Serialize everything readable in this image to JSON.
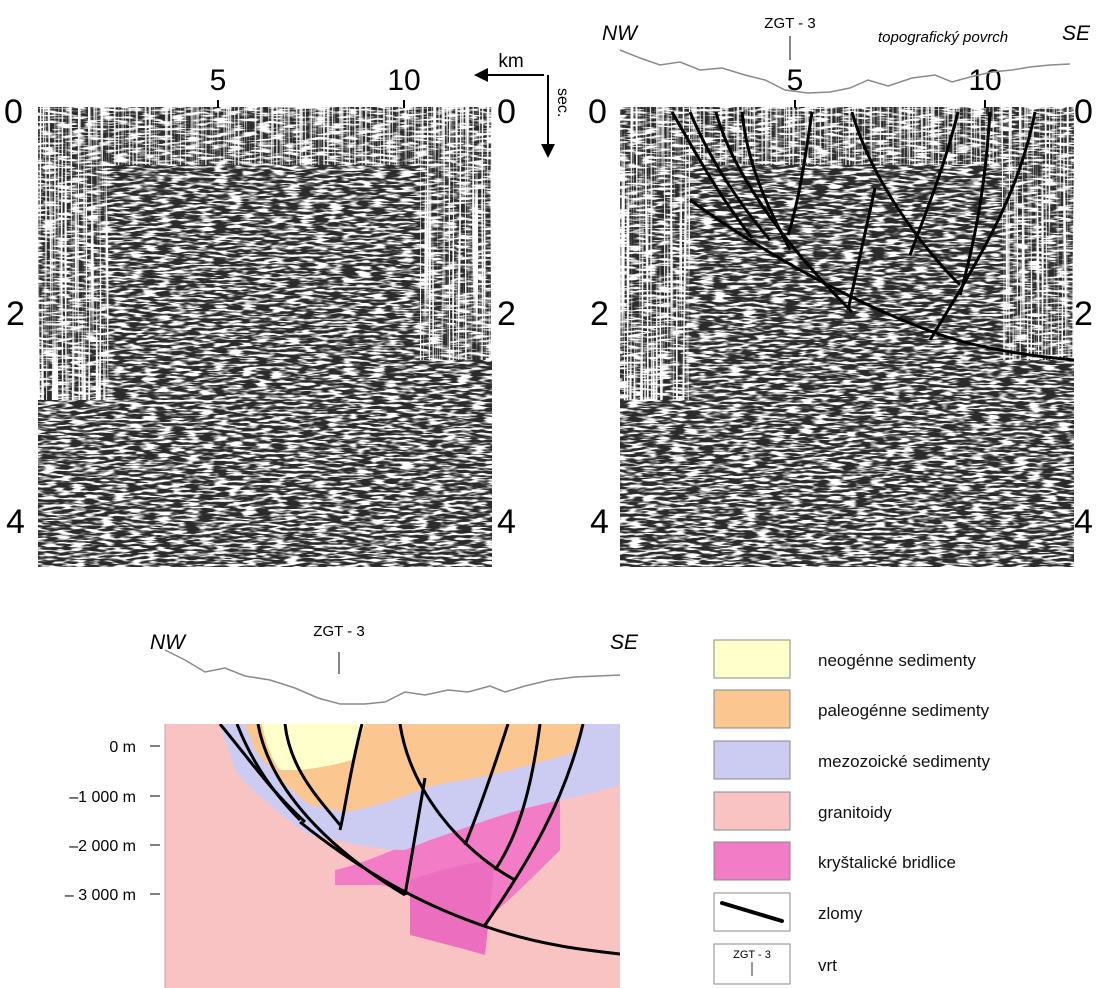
{
  "seismic_left": {
    "km_ticks": [
      "5",
      "10"
    ],
    "depth_ticks_left": [
      "0",
      "2",
      "4"
    ],
    "depth_ticks_right": [
      "0",
      "2",
      "4"
    ],
    "km_label": "km",
    "sec_label": "sec."
  },
  "seismic_right": {
    "km_ticks": [
      "5",
      "10"
    ],
    "depth_ticks_left": [
      "0",
      "2",
      "4"
    ],
    "depth_ticks_right": [
      "0",
      "2",
      "4"
    ],
    "nw_label": "NW",
    "se_label": "SE",
    "well_label": "ZGT - 3",
    "surface_label": "topografický povrch"
  },
  "section": {
    "nw_label": "NW",
    "se_label": "SE",
    "well_label": "ZGT - 3",
    "depth_labels": [
      "0 m",
      "–1 000 m",
      "–2 000 m",
      "– 3 000 m"
    ]
  },
  "legend": {
    "items": [
      {
        "label": "neogénne sedimenty",
        "color": "#ffffcc"
      },
      {
        "label": "paleogénne sedimenty",
        "color": "#fbc690"
      },
      {
        "label": "mezozoické sedimenty",
        "color": "#ccccf3"
      },
      {
        "label": "granitoidy",
        "color": "#f9c3c3"
      },
      {
        "label": "kryštalické bridlice",
        "color": "#f27cc5"
      },
      {
        "label": "zlomy",
        "color": "#000000"
      },
      {
        "label": "vrt",
        "color": "#ffffff"
      }
    ],
    "well_symbol_label": "ZGT - 3"
  }
}
